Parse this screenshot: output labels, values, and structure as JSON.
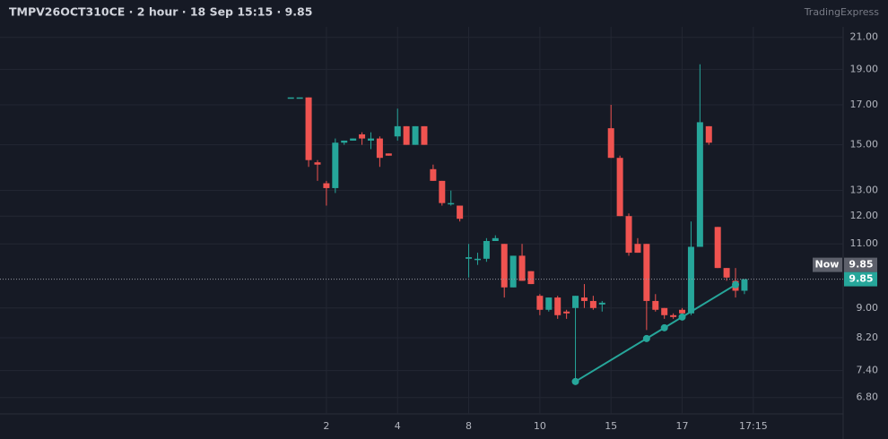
{
  "chart_data": {
    "type": "candlestick",
    "title": "TMPV26OCT310CE · 2 hour · 18 Sep 15:15 · 9.85",
    "brand": "TradingExpress",
    "log_scale": true,
    "grid": true,
    "up_color": "#26a69a",
    "down_color": "#ef5350",
    "xlim": [
      -32.7,
      62.1
    ],
    "xticks": [
      {
        "value": 4,
        "label": "2"
      },
      {
        "value": 12,
        "label": "4"
      },
      {
        "value": 20,
        "label": "8"
      },
      {
        "value": 28,
        "label": "10"
      },
      {
        "value": 36,
        "label": "15"
      },
      {
        "value": 44,
        "label": "17"
      },
      {
        "value": 52,
        "label": "17:15"
      }
    ],
    "ylim": [
      6.46,
      21.7
    ],
    "yticks": [
      {
        "value": 6.8,
        "label": "6.80"
      },
      {
        "value": 7.4,
        "label": "7.40"
      },
      {
        "value": 8.2,
        "label": "8.20"
      },
      {
        "value": 9,
        "label": "9.00"
      },
      {
        "value": 11,
        "label": "11.00"
      },
      {
        "value": 12,
        "label": "12.00"
      },
      {
        "value": 13,
        "label": "13.00"
      },
      {
        "value": 15,
        "label": "15.00"
      },
      {
        "value": 17,
        "label": "17.00"
      },
      {
        "value": 19,
        "label": "19.00"
      },
      {
        "value": 21,
        "label": "21.00"
      }
    ],
    "x": [
      0,
      1,
      2,
      3,
      4,
      5,
      6,
      7,
      8,
      9,
      10,
      11,
      12,
      13,
      14,
      15,
      16,
      17,
      18,
      19,
      20,
      21,
      22,
      23,
      24,
      25,
      26,
      27,
      28,
      29,
      30,
      31,
      32,
      33,
      34,
      35,
      36,
      37,
      38,
      39,
      40,
      41,
      42,
      43,
      44,
      45,
      46,
      47,
      48,
      49,
      50,
      51
    ],
    "open": [
      17.4,
      17.4,
      17.4,
      14.2,
      13.3,
      13.1,
      15.1,
      15.2,
      15.5,
      15.2,
      15.3,
      14.6,
      15.4,
      15.9,
      15.0,
      15.9,
      13.9,
      13.4,
      12.5,
      12.4,
      10.5,
      10.5,
      10.5,
      11.1,
      11.0,
      9.6,
      10.6,
      10.1,
      9.35,
      8.95,
      9.3,
      8.9,
      9.0,
      9.3,
      9.2,
      9.1,
      15.8,
      14.4,
      12.0,
      11.0,
      11.0,
      9.2,
      9.0,
      8.8,
      8.95,
      8.85,
      10.9,
      15.9,
      11.6,
      10.2,
      9.8,
      9.5
    ],
    "high": [
      17.4,
      17.4,
      17.4,
      14.3,
      13.4,
      15.3,
      15.2,
      15.3,
      15.6,
      15.6,
      15.4,
      14.6,
      16.8,
      15.9,
      15.9,
      15.9,
      14.1,
      13.4,
      13.0,
      12.4,
      11.0,
      10.7,
      11.2,
      11.3,
      11.0,
      10.6,
      11.0,
      10.1,
      9.4,
      9.3,
      9.35,
      8.95,
      9.35,
      9.7,
      9.35,
      9.2,
      17.0,
      14.5,
      12.1,
      11.2,
      11.0,
      9.4,
      9.0,
      8.85,
      9.0,
      11.8,
      19.3,
      15.9,
      11.6,
      10.2,
      10.2,
      9.85
    ],
    "low": [
      17.4,
      17.4,
      14.0,
      13.4,
      12.4,
      12.9,
      15.0,
      15.2,
      15.0,
      14.8,
      14.0,
      14.5,
      15.2,
      15.0,
      15.0,
      15.0,
      13.4,
      12.4,
      12.4,
      11.8,
      9.9,
      10.3,
      10.4,
      11.1,
      9.3,
      9.6,
      9.8,
      9.7,
      8.8,
      8.9,
      8.7,
      8.7,
      7.15,
      9.0,
      8.95,
      8.9,
      14.4,
      12.0,
      10.6,
      10.7,
      8.4,
      8.9,
      8.7,
      8.7,
      8.8,
      8.8,
      10.9,
      15.0,
      10.2,
      9.8,
      9.3,
      9.4
    ],
    "close": [
      17.4,
      17.4,
      14.3,
      14.1,
      13.1,
      15.1,
      15.2,
      15.3,
      15.3,
      15.3,
      14.4,
      14.5,
      15.9,
      15.0,
      15.9,
      15.0,
      13.4,
      12.5,
      12.5,
      11.9,
      10.55,
      10.5,
      11.1,
      11.2,
      9.6,
      10.6,
      9.8,
      9.7,
      8.95,
      9.3,
      8.8,
      8.85,
      9.35,
      9.2,
      9.0,
      9.15,
      14.4,
      12.0,
      10.7,
      10.7,
      9.2,
      8.95,
      8.8,
      8.75,
      8.85,
      10.9,
      16.1,
      15.1,
      10.2,
      9.9,
      9.5,
      9.85
    ],
    "trendline": {
      "color": "#26a69a",
      "x": [
        32,
        40,
        42,
        44,
        50
      ],
      "values": [
        7.15,
        8.18,
        8.46,
        8.75,
        9.68
      ]
    },
    "last_price": 9.85,
    "now_label": "Now"
  }
}
